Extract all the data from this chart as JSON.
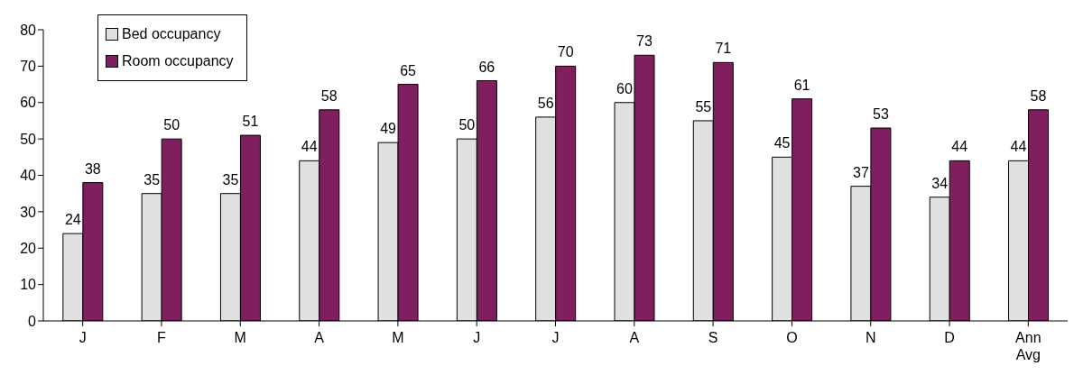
{
  "chart_data": {
    "type": "bar",
    "categories": [
      "J",
      "F",
      "M",
      "A",
      "M",
      "J",
      "J",
      "A",
      "S",
      "O",
      "N",
      "D",
      "Ann Avg"
    ],
    "series": [
      {
        "name": "Bed occupancy",
        "color": "#e0e0e0",
        "values": [
          24,
          35,
          35,
          44,
          49,
          50,
          56,
          60,
          55,
          45,
          37,
          34,
          44
        ]
      },
      {
        "name": "Room occupancy",
        "color": "#7f1f60",
        "values": [
          38,
          50,
          51,
          58,
          65,
          66,
          70,
          73,
          71,
          61,
          53,
          44,
          58
        ]
      }
    ],
    "ylim": [
      0,
      80
    ],
    "yticks": [
      0,
      10,
      20,
      30,
      40,
      50,
      60,
      70,
      80
    ],
    "grid": false,
    "legend": "top left",
    "data_labels": true
  }
}
